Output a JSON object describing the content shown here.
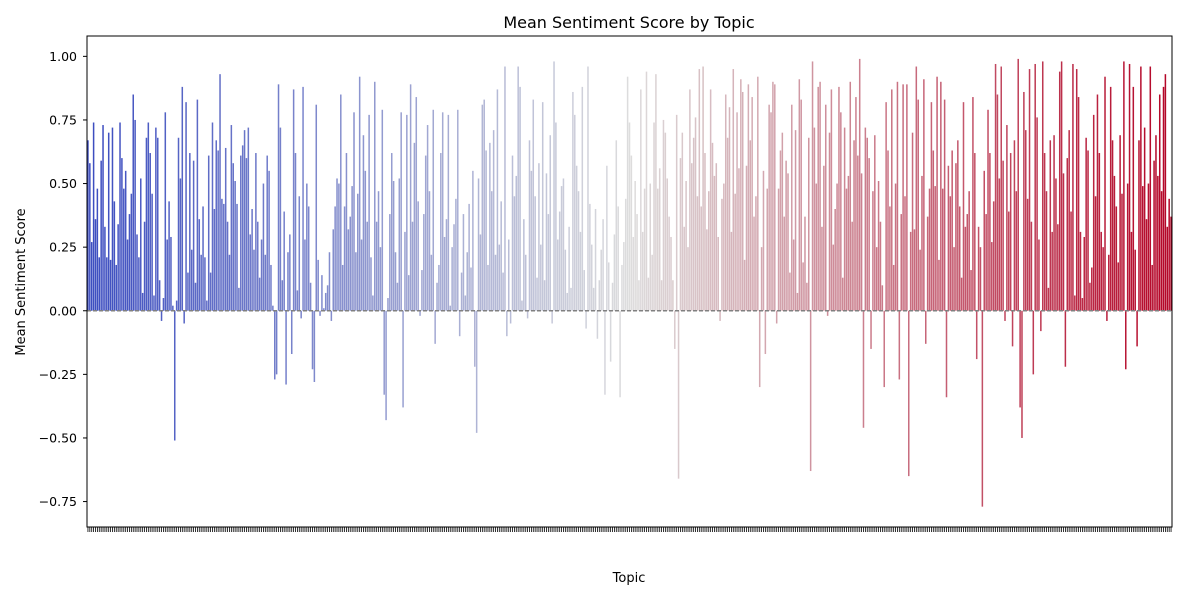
{
  "chart_data": {
    "type": "bar",
    "title": "Mean Sentiment Score by Topic",
    "xlabel": "Topic",
    "ylabel": "Mean Sentiment Score",
    "ylim": [
      -0.85,
      1.08
    ],
    "yticks": [
      "−0.75",
      "−0.50",
      "−0.25",
      "0.00",
      "0.25",
      "0.50",
      "0.75",
      "1.00"
    ],
    "ytick_values": [
      -0.75,
      -0.5,
      -0.25,
      0,
      0.25,
      0.5,
      0.75,
      1.0
    ],
    "grid": false,
    "legend": "none",
    "colormap": "coolwarm",
    "colormap_start": "#3b4cc0",
    "colormap_mid": "#dddddd",
    "colormap_end": "#b40426",
    "zero_line_color": "#808080",
    "values": [
      0.67,
      0.58,
      0.27,
      0.74,
      0.36,
      0.48,
      0.21,
      0.59,
      0.73,
      0.33,
      0.21,
      0.7,
      0.2,
      0.72,
      0.43,
      0.18,
      0.34,
      0.74,
      0.6,
      0.48,
      0.55,
      0.28,
      0.38,
      0.46,
      0.85,
      0.75,
      0.3,
      0.21,
      0.52,
      0.07,
      0.35,
      0.68,
      0.74,
      0.62,
      0.46,
      0.06,
      0.72,
      0.68,
      0.12,
      -0.04,
      0.05,
      0.78,
      0.28,
      0.43,
      0.29,
      0.02,
      -0.51,
      0.04,
      0.68,
      0.52,
      0.88,
      -0.05,
      0.82,
      0.15,
      0.62,
      0.24,
      0.59,
      0.11,
      0.83,
      0.36,
      0.22,
      0.41,
      0.21,
      0.04,
      0.61,
      0.15,
      0.74,
      0.4,
      0.67,
      0.63,
      0.93,
      0.44,
      0.42,
      0.64,
      0.35,
      0.22,
      0.73,
      0.58,
      0.51,
      0.42,
      0.09,
      0.61,
      0.65,
      0.71,
      0.6,
      0.72,
      0.3,
      0.4,
      0.24,
      0.62,
      0.35,
      0.13,
      0.28,
      0.5,
      0.22,
      0.61,
      0.55,
      0.18,
      0.02,
      -0.27,
      -0.25,
      0.89,
      0.72,
      0.12,
      0.39,
      -0.29,
      0.23,
      0.3,
      -0.17,
      0.87,
      0.62,
      0.08,
      0.45,
      -0.03,
      0.88,
      0.28,
      0.5,
      0.41,
      0.11,
      -0.23,
      -0.28,
      0.81,
      0.2,
      -0.02,
      0.14,
      0.01,
      0.07,
      0.1,
      0.23,
      -0.04,
      0.32,
      0.41,
      0.52,
      0.5,
      0.85,
      0.18,
      0.41,
      0.62,
      0.32,
      0.37,
      0.49,
      0.78,
      0.23,
      0.46,
      0.92,
      0.28,
      0.69,
      0.55,
      0.35,
      0.77,
      0.21,
      0.06,
      0.9,
      0.35,
      0.47,
      0.25,
      0.79,
      -0.33,
      -0.43,
      0.05,
      0.38,
      0.62,
      0.51,
      0.23,
      0.11,
      0.52,
      0.78,
      -0.38,
      0.31,
      0.77,
      0.14,
      0.89,
      0.35,
      0.66,
      0.84,
      0.43,
      -0.02,
      0.16,
      0.38,
      0.61,
      0.73,
      0.47,
      0.22,
      0.79,
      -0.13,
      0.11,
      0.18,
      0.62,
      0.78,
      0.29,
      0.36,
      0.77,
      0.02,
      0.25,
      0.34,
      0.44,
      0.79,
      -0.1,
      0.15,
      0.38,
      0.06,
      0.23,
      0.42,
      0.17,
      0.55,
      -0.22,
      -0.48,
      0.52,
      0.3,
      0.81,
      0.83,
      0.63,
      0.18,
      0.66,
      0.47,
      0.71,
      0.22,
      0.87,
      0.26,
      0.43,
      0.15,
      0.96,
      -0.1,
      0.28,
      -0.05,
      0.61,
      0.45,
      0.53,
      0.96,
      0.88,
      0.04,
      0.36,
      0.22,
      -0.03,
      0.67,
      0.55,
      0.83,
      0.45,
      0.13,
      0.58,
      0.26,
      0.82,
      0.12,
      0.54,
      0.38,
      0.69,
      -0.05,
      0.98,
      0.74,
      0.28,
      0.39,
      0.49,
      0.52,
      0.24,
      0.07,
      0.33,
      0.09,
      0.86,
      0.77,
      0.57,
      0.47,
      0.31,
      0.88,
      0.16,
      -0.07,
      0.96,
      0.42,
      0.26,
      0.09,
      0.4,
      -0.11,
      0.12,
      0.24,
      0.36,
      -0.33,
      0.57,
      0.19,
      -0.2,
      0.11,
      0.3,
      0.67,
      0.41,
      -0.34,
      0.18,
      0.27,
      0.44,
      0.92,
      0.74,
      0.61,
      0.29,
      0.51,
      0.38,
      0.12,
      0.87,
      0.31,
      0.48,
      0.94,
      0.13,
      0.5,
      0.22,
      0.74,
      0.93,
      0.48,
      0.56,
      0.12,
      0.75,
      0.7,
      0.52,
      0.37,
      0.29,
      0.12,
      -0.15,
      0.77,
      -0.66,
      0.6,
      0.7,
      0.33,
      0.51,
      0.25,
      0.87,
      0.58,
      0.68,
      0.76,
      0.45,
      0.95,
      0.41,
      0.96,
      0.62,
      0.32,
      0.47,
      0.87,
      0.66,
      0.53,
      0.58,
      0.29,
      -0.04,
      0.44,
      0.5,
      0.85,
      0.68,
      0.8,
      0.31,
      0.95,
      0.46,
      0.78,
      0.56,
      0.91,
      0.86,
      0.2,
      0.57,
      0.89,
      0.67,
      0.84,
      0.37,
      0.45,
      0.92,
      -0.3,
      0.25,
      0.55,
      -0.17,
      0.48,
      0.81,
      0.78,
      0.9,
      0.89,
      -0.05,
      0.48,
      0.63,
      0.7,
      0.37,
      0.59,
      0.54,
      0.15,
      0.81,
      0.28,
      0.71,
      0.07,
      0.91,
      0.83,
      0.19,
      0.37,
      0.11,
      0.68,
      -0.63,
      0.98,
      0.72,
      0.5,
      0.88,
      0.9,
      0.33,
      0.57,
      0.81,
      -0.02,
      0.7,
      0.87,
      0.26,
      0.4,
      0.5,
      0.88,
      0.78,
      0.13,
      0.72,
      0.48,
      0.53,
      0.9,
      0.35,
      0.67,
      0.84,
      0.61,
      0.99,
      0.54,
      -0.46,
      0.72,
      0.68,
      0.6,
      -0.15,
      0.47,
      0.69,
      0.25,
      0.51,
      0.35,
      0.1,
      -0.3,
      0.82,
      0.63,
      0.41,
      0.87,
      0.18,
      0.5,
      0.9,
      -0.27,
      0.38,
      0.89,
      0.45,
      0.89,
      -0.65,
      0.31,
      0.7,
      0.32,
      0.96,
      0.83,
      0.24,
      0.53,
      0.91,
      -0.13,
      0.37,
      0.48,
      0.82,
      0.63,
      0.49,
      0.92,
      0.2,
      0.9,
      0.48,
      0.83,
      -0.34,
      0.57,
      0.45,
      0.63,
      0.25,
      0.58,
      0.67,
      0.41,
      0.13,
      0.82,
      0.33,
      0.38,
      0.47,
      0.16,
      0.84,
      0.62,
      -0.19,
      0.33,
      0.25,
      -0.77,
      0.55,
      0.38,
      0.79,
      0.62,
      0.27,
      0.43,
      0.97,
      0.85,
      0.52,
      0.96,
      0.59,
      -0.04,
      0.73,
      0.39,
      0.62,
      -0.14,
      0.67,
      0.47,
      0.99,
      -0.38,
      -0.5,
      0.86,
      0.71,
      0.44,
      0.95,
      0.35,
      -0.25,
      0.97,
      0.76,
      0.28,
      -0.08,
      0.98,
      0.62,
      0.47,
      0.09,
      0.67,
      0.31,
      0.69,
      0.52,
      0.34,
      0.94,
      0.98,
      0.54,
      -0.22,
      0.6,
      0.71,
      0.39,
      0.97,
      0.06,
      0.95,
      0.84,
      0.31,
      0.05,
      0.29,
      0.68,
      0.63,
      0.11,
      0.17,
      0.77,
      0.45,
      0.85,
      0.62,
      0.31,
      0.25,
      0.92,
      -0.04,
      0.22,
      0.88,
      0.67,
      0.53,
      0.41,
      0.19,
      0.69,
      0.46,
      0.98,
      -0.23,
      0.5,
      0.97,
      0.31,
      0.88,
      0.24,
      -0.14,
      0.67,
      0.96,
      0.49,
      0.72,
      0.36,
      0.5,
      0.96,
      0.18,
      0.59,
      0.69,
      0.53,
      0.85,
      0.47,
      0.88,
      0.93,
      0.33,
      0.44,
      0.37
    ]
  }
}
